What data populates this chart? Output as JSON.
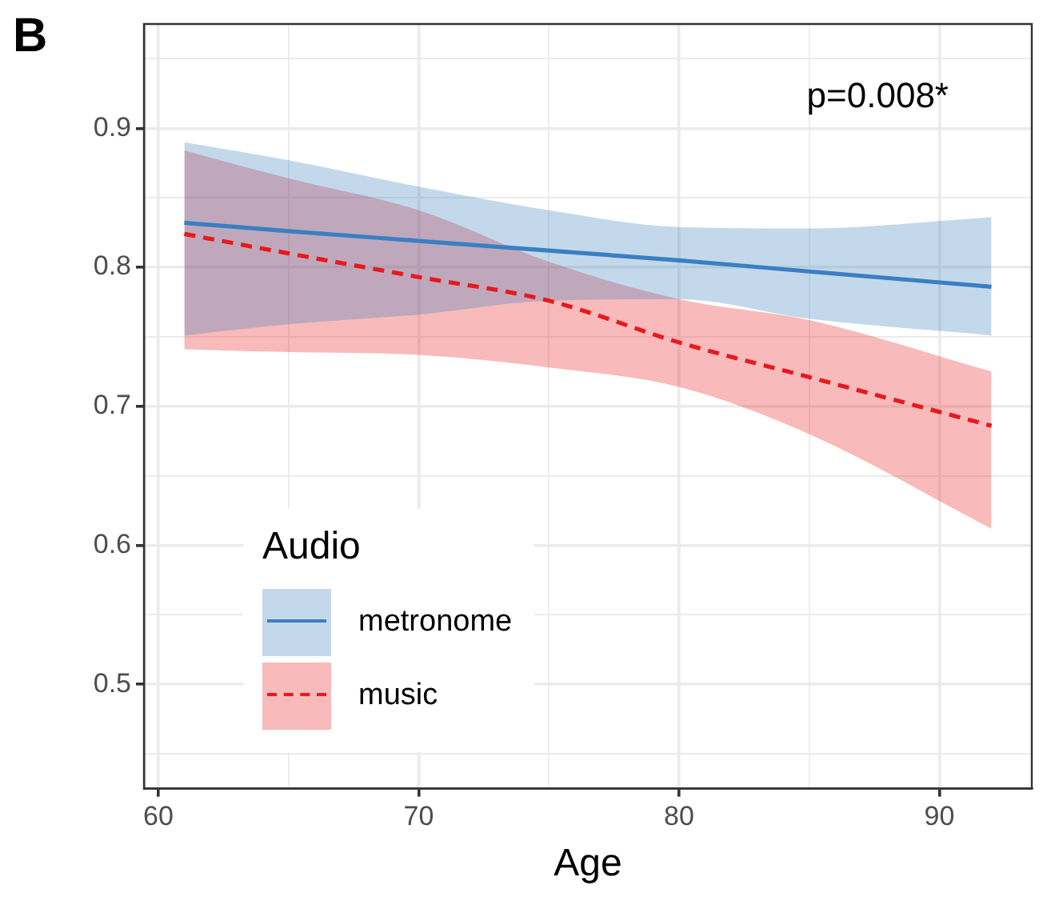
{
  "chart_data": {
    "type": "line",
    "title": "B",
    "xlabel": "Age",
    "legend_title": "Audio",
    "annotations": [
      "p=0.008*"
    ],
    "xlim": [
      59.45,
      93.55
    ],
    "xticks": [
      60,
      {
        "value": 65,
        "label": null
      },
      70,
      {
        "value": 75,
        "label": null
      },
      80,
      {
        "value": 85,
        "label": null
      },
      90
    ],
    "ylim": [
      0.425,
      0.975
    ],
    "yticks": [
      {
        "value": 0.45,
        "label": null
      },
      0.5,
      {
        "value": 0.55,
        "label": null
      },
      0.6,
      {
        "value": 0.65,
        "label": null
      },
      0.7,
      {
        "value": 0.75,
        "label": null
      },
      0.8,
      {
        "value": 0.85,
        "label": null
      },
      0.9,
      {
        "value": 0.95,
        "label": null
      }
    ],
    "grid": true,
    "legend": "bottom left",
    "marker": "none",
    "series": [
      {
        "name": "metronome",
        "color": "#3a7fc1",
        "line_style": "solid",
        "x": [
          61,
          65,
          70,
          75,
          80,
          85,
          92
        ],
        "values": [
          0.832,
          0.826,
          0.819,
          0.812,
          0.805,
          0.797,
          0.786
        ],
        "lower": [
          0.751,
          0.759,
          0.766,
          0.776,
          0.777,
          0.763,
          0.751
        ],
        "upper": [
          0.89,
          0.877,
          0.858,
          0.841,
          0.829,
          0.828,
          0.836
        ]
      },
      {
        "name": "music",
        "color": "#e8191c",
        "line_style": "dashed",
        "x": [
          61,
          65,
          70,
          75,
          80,
          85,
          92
        ],
        "values": [
          0.824,
          0.81,
          0.793,
          0.776,
          0.746,
          0.721,
          0.686
        ],
        "lower": [
          0.741,
          0.739,
          0.737,
          0.728,
          0.714,
          0.68,
          0.612
        ],
        "upper": [
          0.884,
          0.864,
          0.841,
          0.804,
          0.777,
          0.762,
          0.725
        ]
      }
    ]
  }
}
